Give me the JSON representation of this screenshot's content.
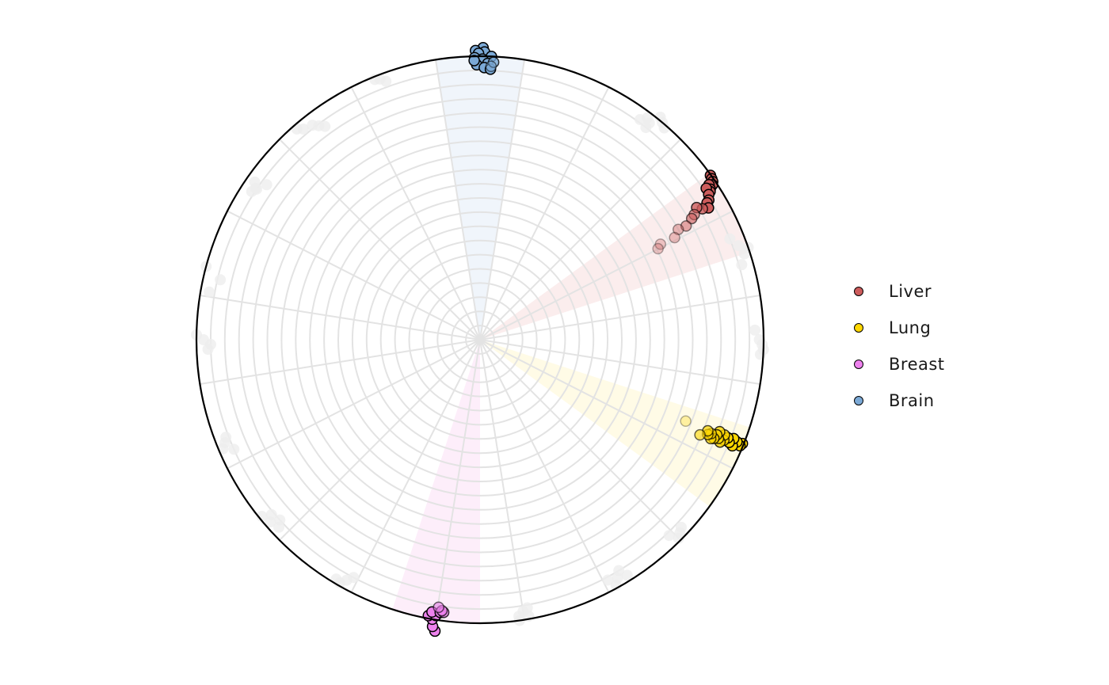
{
  "chart_data": {
    "type": "scatter",
    "coordinate_system": "polar",
    "title": "",
    "angle_origin": "top",
    "angle_direction": "clockwise",
    "sectors_count": 20,
    "radial_rings": 20,
    "radial_range": [
      0,
      1
    ],
    "grid": true,
    "legend_position": "right",
    "background_points_color": "#eeeeee",
    "highlight_sectors": [
      {
        "name": "Liver",
        "from_deg": 54,
        "to_deg": 72,
        "color": "#f7d8d8"
      },
      {
        "name": "Lung",
        "from_deg": 108,
        "to_deg": 126,
        "color": "#fff6c8"
      },
      {
        "name": "Breast",
        "from_deg": 180,
        "to_deg": 198,
        "color": "#fbdaf5"
      },
      {
        "name": "Brain",
        "from_deg": -9,
        "to_deg": 9,
        "color": "#dde9f6"
      }
    ],
    "series": [
      {
        "name": "Liver",
        "color": "#cd5c5c",
        "points": [
          [
            54.5,
            0.998
          ],
          [
            55.2,
            0.995
          ],
          [
            55.8,
            0.992
          ],
          [
            56.3,
            0.985
          ],
          [
            55.9,
            0.975
          ],
          [
            56.8,
            0.97
          ],
          [
            57.2,
            0.965
          ],
          [
            56.2,
            0.96
          ],
          [
            57.6,
            0.955
          ],
          [
            58.6,
            0.945
          ],
          [
            58.9,
            0.935
          ],
          [
            60.0,
            0.93
          ],
          [
            59.5,
            0.91
          ],
          [
            58.6,
            0.895
          ],
          [
            59.7,
            0.875
          ],
          [
            60.2,
            0.86
          ],
          [
            61.1,
            0.83
          ],
          [
            60.9,
            0.8
          ],
          [
            62.3,
            0.775
          ],
          [
            62.1,
            0.72
          ],
          [
            62.9,
            0.705
          ]
        ],
        "opacity": [
          1,
          1,
          1,
          1,
          1,
          1,
          1,
          1,
          1,
          1,
          1,
          1,
          0.8,
          0.8,
          0.6,
          0.6,
          0.5,
          0.4,
          0.35,
          0.3,
          0.3
        ]
      },
      {
        "name": "Lung",
        "color": "#ffd700",
        "points": [
          [
            111.6,
            0.995
          ],
          [
            112.2,
            0.99
          ],
          [
            111.7,
            0.975
          ],
          [
            112.8,
            0.965
          ],
          [
            111.3,
            0.96
          ],
          [
            112.4,
            0.95
          ],
          [
            111.6,
            0.94
          ],
          [
            112.4,
            0.93
          ],
          [
            111.3,
            0.925
          ],
          [
            113.1,
            0.92
          ],
          [
            112.5,
            0.91
          ],
          [
            111.0,
            0.905
          ],
          [
            111.9,
            0.9
          ],
          [
            112.9,
            0.895
          ],
          [
            113.2,
            0.885
          ],
          [
            112.1,
            0.88
          ],
          [
            112.6,
            0.87
          ],
          [
            111.8,
            0.865
          ],
          [
            113.4,
            0.845
          ],
          [
            111.6,
            0.78
          ]
        ],
        "opacity": [
          1,
          1,
          1,
          1,
          1,
          1,
          1,
          0.8,
          0.8,
          0.8,
          0.8,
          0.8,
          0.8,
          0.8,
          0.7,
          0.7,
          0.7,
          0.7,
          0.6,
          0.3
        ]
      },
      {
        "name": "Breast",
        "color": "#ee82ee",
        "points": [
          [
            188.8,
            1.04
          ],
          [
            189.4,
            1.025
          ],
          [
            189.7,
            1.0
          ],
          [
            190.6,
            0.99
          ],
          [
            189.1,
            0.985
          ],
          [
            190.0,
            0.975
          ],
          [
            188.3,
            0.972
          ],
          [
            187.6,
            0.97
          ],
          [
            188.0,
            0.965
          ],
          [
            188.8,
            0.955
          ]
        ],
        "opacity": [
          1,
          1,
          1,
          1,
          1,
          1,
          1,
          0.8,
          0.7,
          0.6
        ]
      },
      {
        "name": "Brain",
        "color": "#7ba9d6",
        "points": [
          [
            0.6,
            1.03
          ],
          [
            -0.9,
            1.02
          ],
          [
            0.9,
            1.015
          ],
          [
            -0.3,
            1.01
          ],
          [
            2.3,
            1.0
          ],
          [
            -1.1,
            0.995
          ],
          [
            0.5,
            0.99
          ],
          [
            1.6,
            0.975
          ],
          [
            -0.7,
            0.97
          ],
          [
            0.9,
            0.96
          ],
          [
            2.2,
            0.955
          ],
          [
            -1.2,
            0.985
          ],
          [
            2.8,
            0.98
          ],
          [
            2.3,
            0.965
          ]
        ],
        "opacity": [
          1,
          1,
          1,
          1,
          1,
          1,
          1,
          1,
          1,
          1,
          1,
          1,
          0.8,
          0.5
        ]
      }
    ],
    "background_points": [
      [
        -22,
        0.99
      ],
      [
        -20,
        0.97
      ],
      [
        -21,
        0.985
      ],
      [
        -40,
        0.97
      ],
      [
        -38,
        0.96
      ],
      [
        -36,
        0.93
      ],
      [
        -37,
        0.945
      ],
      [
        -41,
        0.985
      ],
      [
        -55,
        0.97
      ],
      [
        -56,
        0.95
      ],
      [
        -57,
        0.96
      ],
      [
        -54,
        0.93
      ],
      [
        -56,
        0.955
      ],
      [
        -75,
        1.0
      ],
      [
        -77,
        0.94
      ],
      [
        -80,
        0.97
      ],
      [
        -89,
        1.0
      ],
      [
        -91,
        0.95
      ],
      [
        -92,
        0.96
      ],
      [
        -90,
        0.975
      ],
      [
        -112,
        0.97
      ],
      [
        -114,
        0.95
      ],
      [
        -113,
        0.985
      ],
      [
        -111,
        0.96
      ],
      [
        -130,
        0.96
      ],
      [
        -132,
        0.95
      ],
      [
        -131,
        0.98
      ],
      [
        -129,
        0.99
      ],
      [
        -133,
        0.97
      ],
      [
        -150,
        0.99
      ],
      [
        -152,
        0.95
      ],
      [
        -151,
        0.97
      ],
      [
        -149,
        0.985
      ],
      [
        -170,
        0.99
      ],
      [
        -171,
        0.97
      ],
      [
        -172,
        0.98
      ],
      [
        172,
        1.0
      ],
      [
        171,
        0.97
      ],
      [
        172,
        0.985
      ],
      [
        170,
        0.99
      ],
      [
        170,
        0.96
      ],
      [
        151,
        0.99
      ],
      [
        150,
        0.97
      ],
      [
        148,
        0.98
      ],
      [
        152,
        0.96
      ],
      [
        149,
        0.95
      ],
      [
        135,
        0.99
      ],
      [
        133,
        0.97
      ],
      [
        134,
        0.98
      ],
      [
        136,
        0.96
      ],
      [
        92,
        1.0
      ],
      [
        93,
        0.99
      ],
      [
        90,
        0.985
      ],
      [
        91,
        0.995
      ],
      [
        88,
        0.97
      ],
      [
        71,
        1.0
      ],
      [
        70,
        0.97
      ],
      [
        72,
        0.98
      ],
      [
        74,
        0.96
      ],
      [
        68,
        0.95
      ],
      [
        39,
        1.01
      ],
      [
        40,
        1.0
      ],
      [
        38,
        0.97
      ],
      [
        38,
        0.95
      ],
      [
        41,
        0.99
      ],
      [
        37,
        0.98
      ],
      [
        36,
        0.96
      ]
    ]
  }
}
